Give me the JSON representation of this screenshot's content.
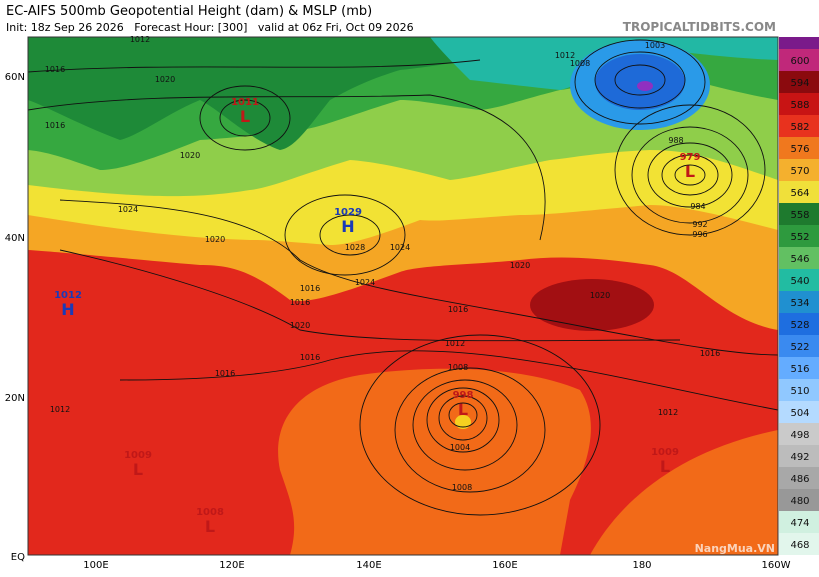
{
  "header": {
    "title": "EC-AIFS 500mb Geopotential Height (dam) & MSLP (mb)",
    "subtitle": "Init: 18z Sep 26 2026   Forecast Hour: [300]   valid at 06z Fri, Oct 09 2026",
    "site": "TROPICALTIDBITS.COM"
  },
  "latitude_labels": [
    "60N",
    "40N",
    "20N",
    "EQ"
  ],
  "longitude_labels": [
    "100E",
    "120E",
    "140E",
    "160E",
    "180",
    "160W"
  ],
  "colorbar": {
    "labels": [
      600,
      594,
      588,
      582,
      576,
      570,
      564,
      558,
      552,
      546,
      540,
      534,
      528,
      522,
      516,
      510,
      504,
      498,
      492,
      486,
      480,
      474,
      468
    ]
  },
  "pressure_centers": [
    {
      "letter": "L",
      "value": "1011"
    },
    {
      "letter": "H",
      "value": "1029"
    },
    {
      "letter": "H",
      "value": "1012"
    },
    {
      "letter": "L",
      "value": "998"
    },
    {
      "letter": "L",
      "value": "1009"
    },
    {
      "letter": "L",
      "value": "1009"
    },
    {
      "letter": "L",
      "value": "979"
    },
    {
      "letter": "L",
      "value": "1008"
    }
  ],
  "contour_labels": [
    "1012",
    "1016",
    "1020",
    "1016",
    "1020",
    "1024",
    "1020",
    "1016",
    "1016",
    "1020",
    "1024",
    "1028",
    "1024",
    "1020",
    "1016",
    "1012",
    "1008",
    "1016",
    "1020",
    "1016",
    "1012",
    "1004",
    "1008",
    "1012",
    "1016",
    "1012",
    "1008",
    "988",
    "984",
    "992",
    "996",
    "1003"
  ],
  "watermark": "NangMua.VN"
}
